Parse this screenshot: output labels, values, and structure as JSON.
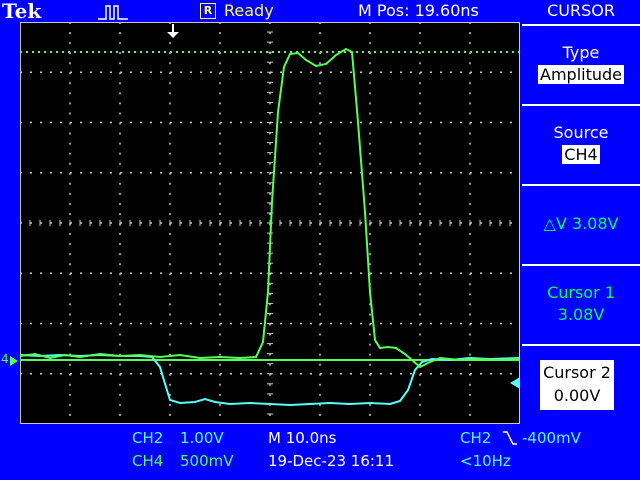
{
  "header": {
    "brand": "Tek",
    "acq_state": "Ready",
    "acq_state_icon": "R",
    "horiz_position": "M Pos: 19.60ns"
  },
  "menu": {
    "title": "CURSOR",
    "type_label": "Type",
    "type_value": "Amplitude",
    "source_label": "Source",
    "source_value": "CH4",
    "delta": "△V 3.08V",
    "cursor1_label": "Cursor 1",
    "cursor1_value": "3.08V",
    "cursor2_label": "Cursor 2",
    "cursor2_value": "0.00V"
  },
  "footer": {
    "ch2_label": "CH2",
    "ch2_scale": "1.00V",
    "ch4_label": "CH4",
    "ch4_scale": "500mV",
    "timebase": "M 10.0ns",
    "datetime": "19-Dec-23 16:11",
    "trigger_source": "CH2",
    "trigger_level": "-400mV",
    "trigger_freq": "<10Hz"
  },
  "markers": {
    "ch_marker": "4"
  },
  "colors": {
    "ch4": "#55ff55",
    "ch2": "#55ffff",
    "background": "#0000ff",
    "grid": "#c8c8c8",
    "header": "#ffff55"
  }
}
